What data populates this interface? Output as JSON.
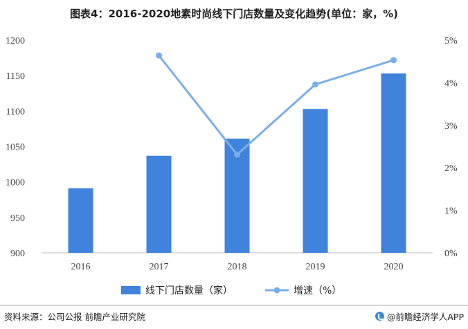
{
  "title": "图表4：2016-2020地素时尚线下门店数量及变化趋势(单位：家，%)",
  "footer": {
    "source": "资料来源：公司公报 前瞻产业研究院",
    "brand": "@前瞻经济学人APP",
    "brand_icon": "qianzhan-logo-icon"
  },
  "colors": {
    "bar": "#3f83dc",
    "line": "#7aaeea",
    "axis": "#bdbdbd"
  },
  "chart_data": {
    "type": "bar+line",
    "categories": [
      "2016",
      "2017",
      "2018",
      "2019",
      "2020"
    ],
    "series": [
      {
        "name": "线下门店数量（家）",
        "type": "bar",
        "axis": "left",
        "values": [
          991,
          1037,
          1061,
          1103,
          1153
        ]
      },
      {
        "name": "增速（%）",
        "type": "line",
        "axis": "right",
        "values": [
          null,
          4.64,
          2.31,
          3.96,
          4.53
        ]
      }
    ],
    "y_left": {
      "min": 900,
      "max": 1200,
      "ticks": [
        900,
        950,
        1000,
        1050,
        1100,
        1150,
        1200
      ]
    },
    "y_right": {
      "min": 0,
      "max": 5,
      "ticks": [
        "0%",
        "1%",
        "2%",
        "3%",
        "4%",
        "5%"
      ]
    },
    "legend": {
      "placement": "bottom-center"
    },
    "grid": false
  }
}
